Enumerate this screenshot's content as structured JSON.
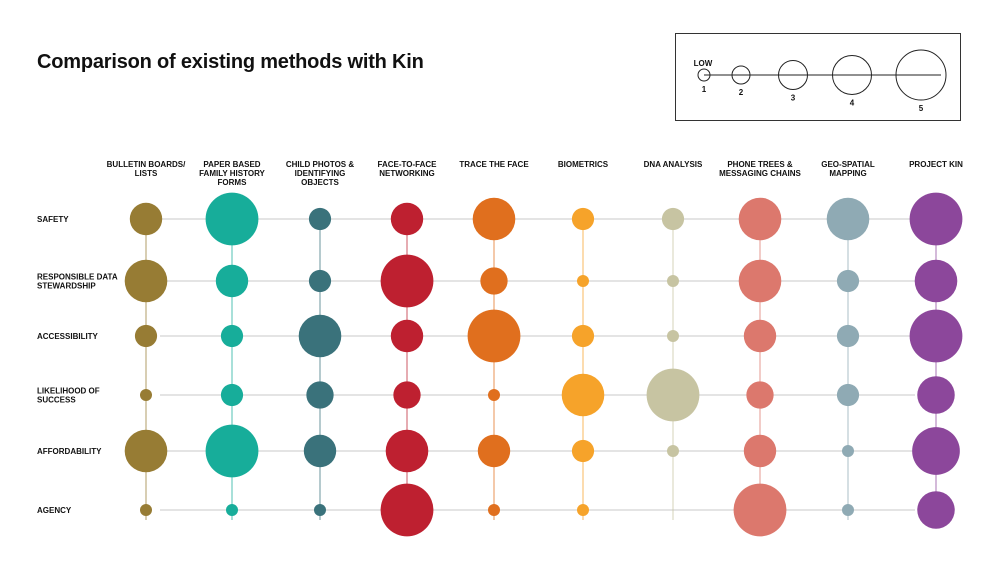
{
  "title": "Comparison of existing methods with Kin",
  "legend": {
    "low_label": "LOW",
    "levels": [
      1,
      2,
      3,
      4,
      5
    ],
    "level_labels": [
      "1",
      "2",
      "3",
      "4",
      "5"
    ],
    "line_color": "#222222"
  },
  "chart_data": {
    "type": "bubble-matrix",
    "title": "Comparison of existing methods with Kin",
    "size_scale": [
      1,
      5
    ],
    "columns": [
      {
        "label_lines": [
          "BULLETIN BOARDS/",
          "LISTS"
        ],
        "color": "#977c34"
      },
      {
        "label_lines": [
          "PAPER BASED",
          "FAMILY HISTORY",
          "FORMS"
        ],
        "color": "#17ad9a"
      },
      {
        "label_lines": [
          "CHILD PHOTOS &",
          "IDENTIFYING",
          "OBJECTS"
        ],
        "color": "#3a727b"
      },
      {
        "label_lines": [
          "FACE-TO-FACE",
          "NETWORKING"
        ],
        "color": "#be2030"
      },
      {
        "label_lines": [
          "TRACE THE FACE"
        ],
        "color": "#e06f1e"
      },
      {
        "label_lines": [
          "BIOMETRICS"
        ],
        "color": "#f6a32a"
      },
      {
        "label_lines": [
          "DNA ANALYSIS"
        ],
        "color": "#c7c4a2"
      },
      {
        "label_lines": [
          "PHONE TREES &",
          "MESSAGING CHAINS"
        ],
        "color": "#dc786d"
      },
      {
        "label_lines": [
          "GEO-SPATIAL",
          "MAPPING"
        ],
        "color": "#8faab4"
      },
      {
        "label_lines": [
          "PROJECT KIN"
        ],
        "color": "#8c479b"
      }
    ],
    "rows": [
      {
        "label_lines": [
          "SAFETY"
        ]
      },
      {
        "label_lines": [
          "RESPONSIBLE DATA",
          "STEWARDSHIP"
        ]
      },
      {
        "label_lines": [
          "ACCESSIBILITY"
        ]
      },
      {
        "label_lines": [
          "LIKELIHOOD OF",
          "SUCCESS"
        ]
      },
      {
        "label_lines": [
          "AFFORDABILITY"
        ]
      },
      {
        "label_lines": [
          "AGENCY"
        ]
      }
    ],
    "values": [
      [
        3,
        5,
        2,
        3,
        4,
        2,
        2,
        4,
        4,
        5
      ],
      [
        4,
        3,
        2,
        5,
        2.5,
        1,
        1,
        4,
        2,
        4
      ],
      [
        2,
        2,
        4,
        3,
        5,
        2,
        1,
        3,
        2,
        5
      ],
      [
        1,
        2,
        2.5,
        2.5,
        1,
        4,
        5,
        2.5,
        2,
        3.5
      ],
      [
        4,
        5,
        3,
        4,
        3,
        2,
        1,
        3,
        1,
        4.5
      ],
      [
        1,
        1,
        1,
        5,
        1,
        1,
        0,
        5,
        1,
        3.5
      ]
    ]
  }
}
